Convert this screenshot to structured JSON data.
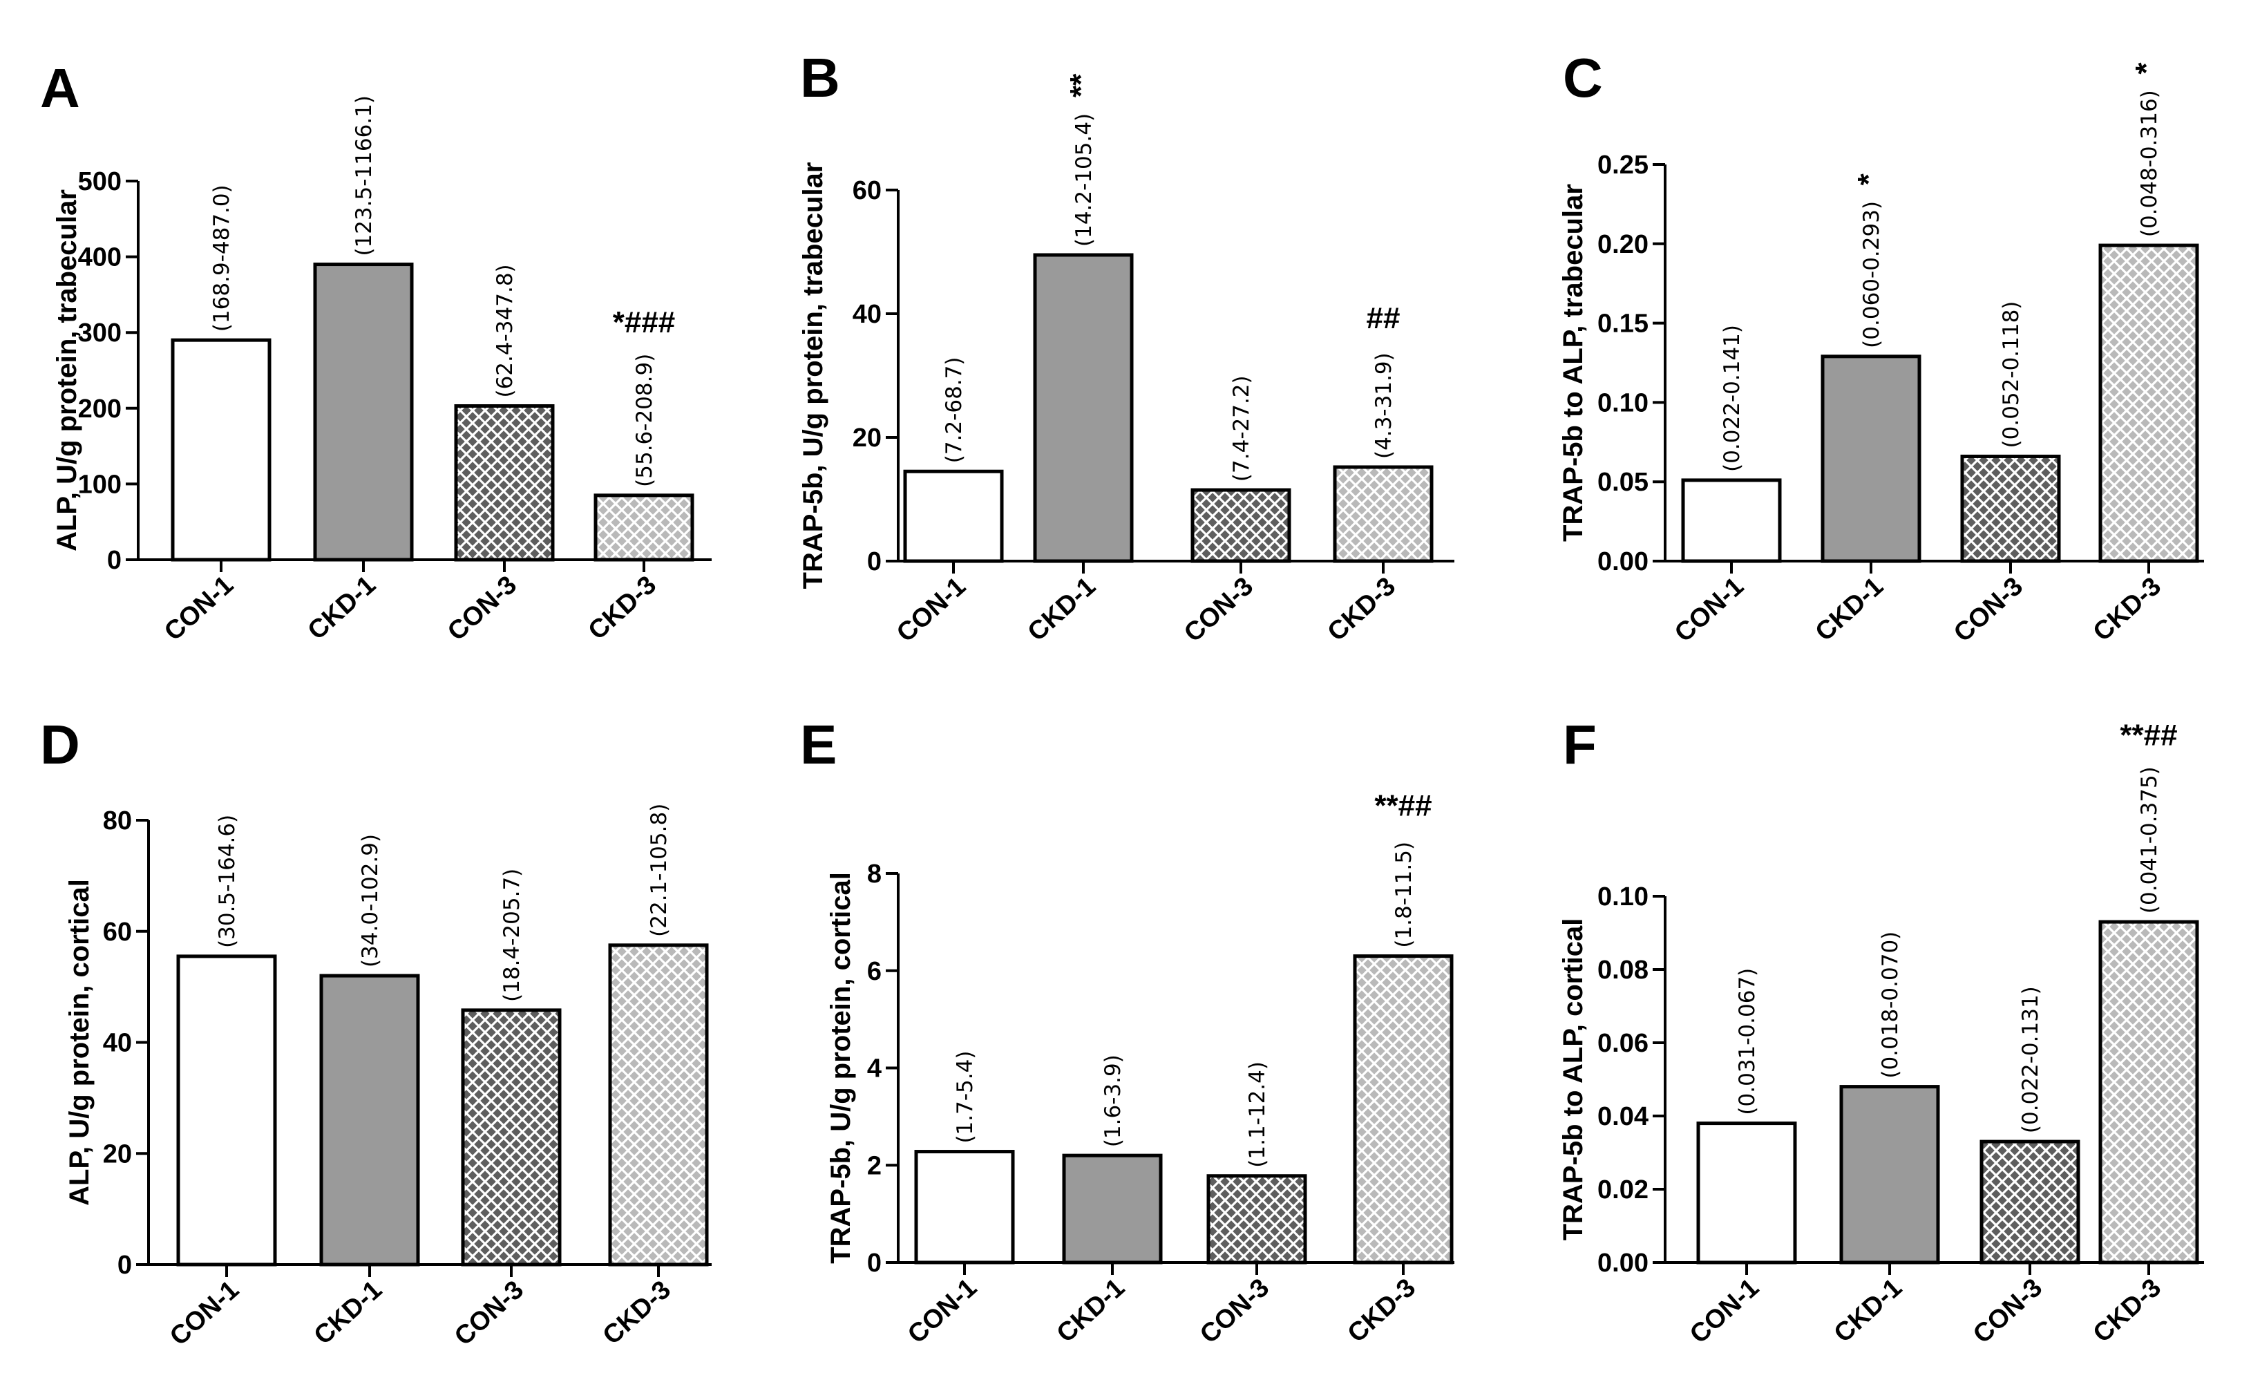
{
  "chart_data": [
    {
      "panel": "A",
      "type": "bar",
      "ylabel": "ALP, U/g protein, trabecular",
      "categories": [
        "CON-1",
        "CKD-1",
        "CON-3",
        "CKD-3"
      ],
      "values": [
        290,
        390,
        203,
        85
      ],
      "ranges": [
        "(168.9-487.0)",
        "(123.5-1166.1)",
        "(62.4-347.8)",
        "(55.6-208.9)"
      ],
      "significance": [
        "",
        "",
        "",
        "*###"
      ],
      "ylim": [
        0,
        500
      ],
      "yticks": [
        "0",
        "100",
        "200",
        "300",
        "400",
        "500"
      ]
    },
    {
      "panel": "B",
      "type": "bar",
      "ylabel": "TRAP-5b, U/g protein, trabecular",
      "categories": [
        "CON-1",
        "CKD-1",
        "CON-3",
        "CKD-3"
      ],
      "values": [
        14.5,
        49.5,
        11.5,
        15.2
      ],
      "ranges": [
        "(7.2-68.7)",
        "(14.2-105.4)",
        "(7.4-27.2)",
        "(4.3-31.9)"
      ],
      "significance": [
        "",
        "**",
        "",
        "##"
      ],
      "ylim": [
        0,
        60
      ],
      "yticks": [
        "0",
        "20",
        "40",
        "60"
      ]
    },
    {
      "panel": "C",
      "type": "bar",
      "ylabel": "TRAP-5b to ALP, trabecular",
      "categories": [
        "CON-1",
        "CKD-1",
        "CON-3",
        "CKD-3"
      ],
      "values": [
        0.051,
        0.129,
        0.066,
        0.199
      ],
      "ranges": [
        "(0.022-0.141)",
        "(0.060-0.293)",
        "(0.052-0.118)",
        "(0.048-0.316)"
      ],
      "significance": [
        "",
        "*",
        "",
        "*"
      ],
      "ylim": [
        0,
        0.25
      ],
      "yticks": [
        "0.00",
        "0.05",
        "0.10",
        "0.15",
        "0.20",
        "0.25"
      ]
    },
    {
      "panel": "D",
      "type": "bar",
      "ylabel": "ALP, U/g protein, cortical",
      "categories": [
        "CON-1",
        "CKD-1",
        "CON-3",
        "CKD-3"
      ],
      "values": [
        55.5,
        52,
        45.8,
        57.5
      ],
      "ranges": [
        "(30.5-164.6)",
        "(34.0-102.9)",
        "(18.4-205.7)",
        "(22.1-105.8)"
      ],
      "significance": [
        "",
        "",
        "",
        ""
      ],
      "ylim": [
        0,
        80
      ],
      "yticks": [
        "0",
        "20",
        "40",
        "60",
        "80"
      ]
    },
    {
      "panel": "E",
      "type": "bar",
      "ylabel": "TRAP-5b, U/g protein, cortical",
      "categories": [
        "CON-1",
        "CKD-1",
        "CON-3",
        "CKD-3"
      ],
      "values": [
        2.28,
        2.2,
        1.78,
        6.3
      ],
      "ranges": [
        "(1.7-5.4)",
        "(1.6-3.9)",
        "(1.1-12.4)",
        "(1.8-11.5)"
      ],
      "significance": [
        "",
        "",
        "",
        "**##"
      ],
      "ylim": [
        0,
        8
      ],
      "yticks": [
        "0",
        "2",
        "4",
        "6",
        "8"
      ]
    },
    {
      "panel": "F",
      "type": "bar",
      "ylabel": "TRAP-5b to ALP, cortical",
      "categories": [
        "CON-1",
        "CKD-1",
        "CON-3",
        "CKD-3"
      ],
      "values": [
        0.038,
        0.048,
        0.033,
        0.093
      ],
      "ranges": [
        "(0.031-0.067)",
        "(0.018-0.070)",
        "(0.022-0.131)",
        "(0.041-0.375)"
      ],
      "significance": [
        "",
        "",
        "",
        "**##"
      ],
      "ylim": [
        0,
        0.1
      ],
      "yticks": [
        "0.00",
        "0.02",
        "0.04",
        "0.06",
        "0.08",
        "0.10"
      ]
    }
  ],
  "colors": {
    "axis": "#000000",
    "con1_fill": "#ffffff",
    "ckd1_fill": "#9a9a9a",
    "con3_hatch_bg": "#5e5e5e",
    "ckd3_hatch_bg": "#b9b9b9",
    "hatch_lines": "#ffffff"
  }
}
